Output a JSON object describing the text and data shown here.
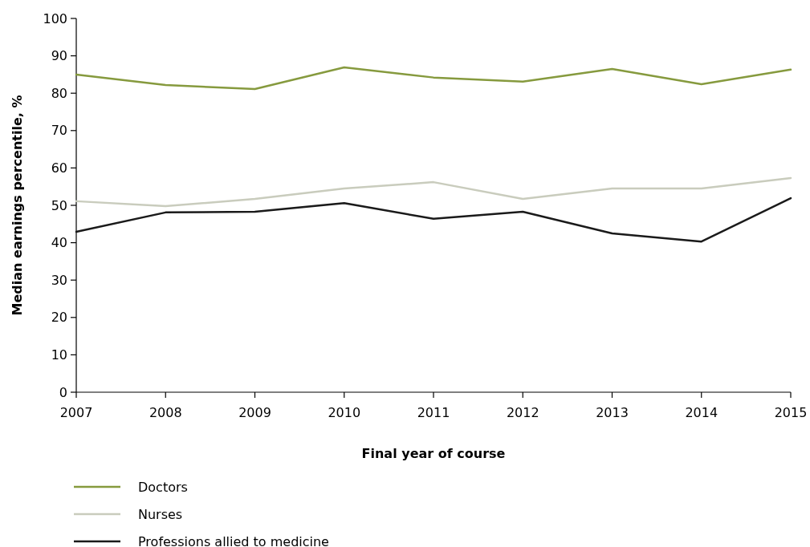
{
  "chart_data": {
    "type": "line",
    "xlabel": "Final year of course",
    "ylabel": "Median earnings percentile, %",
    "x": [
      2007,
      2008,
      2009,
      2010,
      2011,
      2012,
      2013,
      2014,
      2015
    ],
    "xlim": [
      2007,
      2015
    ],
    "xticks": [
      2007,
      2008,
      2009,
      2010,
      2011,
      2012,
      2013,
      2014,
      2015
    ],
    "ylim": [
      0,
      100
    ],
    "yticks": [
      0,
      10,
      20,
      30,
      40,
      50,
      60,
      70,
      80,
      90,
      100
    ],
    "grid": false,
    "legend": "bottom left",
    "marker": "none",
    "line_style": "solid",
    "series": [
      {
        "name": "Doctors",
        "color": "#869a3e",
        "values": [
          85.0,
          82.2,
          81.1,
          86.9,
          84.2,
          83.1,
          86.5,
          82.4,
          86.3
        ]
      },
      {
        "name": "Nurses",
        "color": "#c9ccbd",
        "values": [
          51.1,
          49.8,
          51.7,
          54.5,
          56.2,
          51.7,
          54.5,
          54.5,
          57.3
        ]
      },
      {
        "name": "Professions allied to medicine",
        "color": "#1a1a1a",
        "values": [
          42.9,
          48.1,
          48.3,
          50.6,
          46.4,
          48.3,
          42.5,
          40.3,
          51.9
        ]
      }
    ]
  }
}
